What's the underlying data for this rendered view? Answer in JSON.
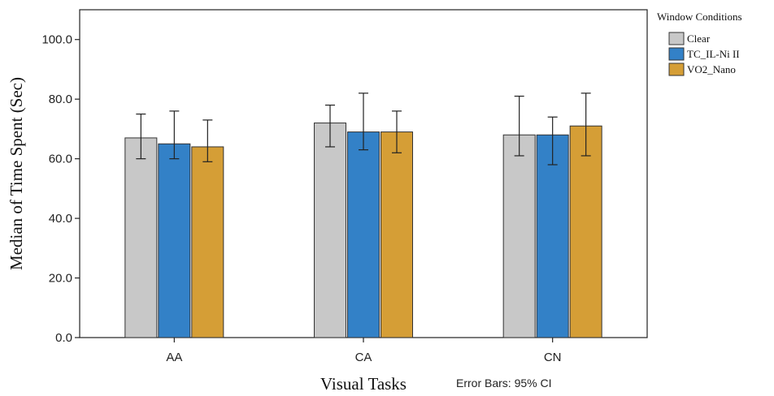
{
  "chart_data": {
    "type": "bar",
    "title": "",
    "xlabel": "Visual Tasks",
    "ylabel": "Median of Time Spent  (Sec)",
    "ylim": [
      0,
      110
    ],
    "yticks": [
      "0.0",
      "20.0",
      "40.0",
      "60.0",
      "80.0",
      "100.0"
    ],
    "categories": [
      "AA",
      "CA",
      "CN"
    ],
    "series": [
      {
        "name": "Clear",
        "color": "#c8c8c8",
        "values": [
          67,
          72,
          68
        ],
        "ci_low": [
          60,
          64,
          61
        ],
        "ci_high": [
          75,
          78,
          81
        ]
      },
      {
        "name": "TC_IL-Ni II",
        "color": "#3381c7",
        "values": [
          65,
          69,
          68
        ],
        "ci_low": [
          60,
          63,
          58
        ],
        "ci_high": [
          76,
          82,
          74
        ]
      },
      {
        "name": "VO2_Nano",
        "color": "#d59e36",
        "values": [
          64,
          69,
          71
        ],
        "ci_low": [
          59,
          62,
          61
        ],
        "ci_high": [
          73,
          76,
          82
        ]
      }
    ],
    "legend_title": "Window Conditions",
    "legend_position": "right",
    "grid": false,
    "note": "Error Bars: 95% CI"
  }
}
